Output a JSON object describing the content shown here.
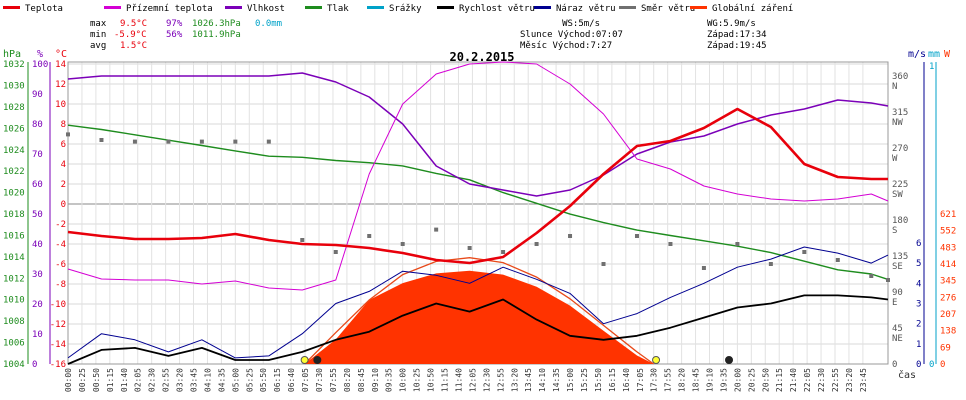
{
  "chart_data": {
    "type": "line",
    "title": "20.2.2015",
    "legend": [
      {
        "name": "Teplota",
        "color": "#e8000b"
      },
      {
        "name": "Přízemní teplota",
        "color": "#d400d4"
      },
      {
        "name": "Vlhkost",
        "color": "#7b00b8"
      },
      {
        "name": "Tlak",
        "color": "#1e8c1e"
      },
      {
        "name": "Srážky",
        "color": "#00a2c8"
      },
      {
        "name": "Rychlost větru",
        "color": "#000000"
      },
      {
        "name": "Náraz větru",
        "color": "#000090"
      },
      {
        "name": "Směr větru",
        "color": "#707070"
      },
      {
        "name": "Globální záření",
        "color": "#ff3300"
      }
    ],
    "stats": {
      "max": {
        "label": "max",
        "temp": "9.5°C",
        "hum": "97%",
        "press": "1026.3hPa",
        "rain": "0.0mm"
      },
      "min": {
        "label": "min",
        "temp": "-5.9°C",
        "hum": "56%",
        "press": "1011.9hPa"
      },
      "avg": {
        "label": "avg",
        "temp": "1.5°C"
      }
    },
    "info": {
      "ws": "WS:5m/s",
      "wg": "WG:5.9m/s",
      "sun": "Slunce Východ:07:07",
      "sun_set": "Západ:17:34",
      "moon": "Měsíc Východ:7:27",
      "moon_set": "Západ:19:45"
    },
    "units": {
      "hpa": "hPa",
      "pct": "%",
      "c": "°C",
      "ms": "m/s",
      "mm": "mm",
      "w": "W",
      "cas": "čas"
    },
    "axes": {
      "pressure_ticks": [
        "1032",
        "1030",
        "1028",
        "1026",
        "1024",
        "1022",
        "1020",
        "1018",
        "1016",
        "1014",
        "1012",
        "1010",
        "1008",
        "1006",
        "1004"
      ],
      "humidity_ticks": [
        "100",
        "90",
        "80",
        "70",
        "60",
        "50",
        "40",
        "30",
        "20",
        "10",
        "0"
      ],
      "temp_ticks": [
        "14",
        "12",
        "10",
        "8",
        "6",
        "4",
        "2",
        "0",
        "-2",
        "-4",
        "-6",
        "-8",
        "-10",
        "-12",
        "-14",
        "-16"
      ],
      "dir_ticks": [
        {
          "v": "360",
          "d": "N"
        },
        {
          "v": "315",
          "d": "NW"
        },
        {
          "v": "270",
          "d": "W"
        },
        {
          "v": "225",
          "d": "SW"
        },
        {
          "v": "180",
          "d": "S"
        },
        {
          "v": "135",
          "d": "SE"
        },
        {
          "v": "90",
          "d": "E"
        },
        {
          "v": "45",
          "d": "NE"
        },
        {
          "v": "0",
          "d": ""
        }
      ],
      "wind_ticks": [
        "6",
        "5",
        "4",
        "3",
        "2",
        "1",
        "0"
      ],
      "rain_ticks": [
        "1",
        "0"
      ],
      "rad_ticks": [
        "621",
        "552",
        "483",
        "414",
        "345",
        "276",
        "207",
        "138",
        "69",
        "0"
      ],
      "time_ticks": [
        "00:00",
        "00:25",
        "00:50",
        "01:15",
        "01:40",
        "02:05",
        "02:30",
        "02:55",
        "03:20",
        "03:45",
        "04:10",
        "04:35",
        "05:00",
        "05:25",
        "05:50",
        "06:15",
        "06:40",
        "07:05",
        "07:30",
        "07:55",
        "08:20",
        "08:45",
        "09:10",
        "09:35",
        "10:00",
        "10:25",
        "10:50",
        "11:15",
        "11:40",
        "12:05",
        "12:30",
        "12:55",
        "13:20",
        "13:45",
        "14:10",
        "14:35",
        "15:00",
        "15:25",
        "15:50",
        "16:15",
        "16:40",
        "17:05",
        "17:30",
        "17:55",
        "18:20",
        "18:45",
        "19:10",
        "19:35",
        "20:00",
        "20:25",
        "20:50",
        "21:15",
        "21:40",
        "22:05",
        "22:30",
        "22:55",
        "23:20",
        "23:45"
      ]
    },
    "series_points": {
      "temperature_C": [
        [
          0,
          -2.8
        ],
        [
          1,
          -3.2
        ],
        [
          2,
          -3.5
        ],
        [
          3,
          -3.5
        ],
        [
          4,
          -3.4
        ],
        [
          5,
          -3.0
        ],
        [
          6,
          -3.6
        ],
        [
          7,
          -4.0
        ],
        [
          8,
          -4.1
        ],
        [
          9,
          -4.4
        ],
        [
          10,
          -4.9
        ],
        [
          11,
          -5.6
        ],
        [
          12,
          -5.9
        ],
        [
          13,
          -5.3
        ],
        [
          14,
          -2.9
        ],
        [
          15,
          -0.2
        ],
        [
          16,
          3.0
        ],
        [
          17,
          5.8
        ],
        [
          18,
          6.3
        ],
        [
          19,
          7.6
        ],
        [
          20,
          9.5
        ],
        [
          21,
          7.7
        ],
        [
          22,
          4.0
        ],
        [
          23,
          2.7
        ],
        [
          24,
          2.5
        ],
        [
          24.5,
          2.5
        ]
      ],
      "ground_temp_C": [
        [
          0,
          -6.5
        ],
        [
          1,
          -7.5
        ],
        [
          2,
          -7.6
        ],
        [
          3,
          -7.6
        ],
        [
          4,
          -8.0
        ],
        [
          5,
          -7.7
        ],
        [
          6,
          -8.4
        ],
        [
          7,
          -8.6
        ],
        [
          8,
          -7.6
        ],
        [
          9,
          3.0
        ],
        [
          10,
          10.0
        ],
        [
          11,
          13.0
        ],
        [
          12,
          14.0
        ],
        [
          13,
          14.2
        ],
        [
          14,
          14.0
        ],
        [
          15,
          12.0
        ],
        [
          16,
          9.0
        ],
        [
          17,
          4.5
        ],
        [
          18,
          3.5
        ],
        [
          19,
          1.8
        ],
        [
          20,
          1.0
        ],
        [
          21,
          0.5
        ],
        [
          22,
          0.3
        ],
        [
          23,
          0.5
        ],
        [
          24,
          1.0
        ],
        [
          24.5,
          0.3
        ]
      ],
      "humidity_pct": [
        [
          0,
          95
        ],
        [
          1,
          96
        ],
        [
          2,
          96
        ],
        [
          3,
          96
        ],
        [
          4,
          96
        ],
        [
          5,
          96
        ],
        [
          6,
          96
        ],
        [
          7,
          97
        ],
        [
          8,
          94
        ],
        [
          9,
          89
        ],
        [
          10,
          80
        ],
        [
          11,
          66
        ],
        [
          12,
          60
        ],
        [
          13,
          58
        ],
        [
          14,
          56
        ],
        [
          15,
          58
        ],
        [
          16,
          63
        ],
        [
          17,
          70
        ],
        [
          18,
          74
        ],
        [
          19,
          76
        ],
        [
          20,
          80
        ],
        [
          21,
          83
        ],
        [
          22,
          85
        ],
        [
          23,
          88
        ],
        [
          24,
          87
        ],
        [
          24.5,
          86
        ]
      ],
      "pressure_hPa": [
        [
          0,
          1026.3
        ],
        [
          1,
          1025.9
        ],
        [
          2,
          1025.4
        ],
        [
          3,
          1024.9
        ],
        [
          4,
          1024.4
        ],
        [
          5,
          1023.9
        ],
        [
          6,
          1023.4
        ],
        [
          7,
          1023.3
        ],
        [
          8,
          1023.0
        ],
        [
          9,
          1022.8
        ],
        [
          10,
          1022.5
        ],
        [
          11,
          1021.8
        ],
        [
          12,
          1021.2
        ],
        [
          13,
          1020.0
        ],
        [
          14,
          1019.0
        ],
        [
          15,
          1018.0
        ],
        [
          16,
          1017.2
        ],
        [
          17,
          1016.5
        ],
        [
          18,
          1016.0
        ],
        [
          19,
          1015.5
        ],
        [
          20,
          1015.0
        ],
        [
          21,
          1014.4
        ],
        [
          22,
          1013.6
        ],
        [
          23,
          1012.8
        ],
        [
          24,
          1012.4
        ],
        [
          24.5,
          1011.9
        ]
      ],
      "wind_speed_ms": [
        [
          0,
          0.0
        ],
        [
          1,
          0.7
        ],
        [
          2,
          0.8
        ],
        [
          3,
          0.4
        ],
        [
          4,
          0.8
        ],
        [
          5,
          0.2
        ],
        [
          6,
          0.2
        ],
        [
          7,
          0.6
        ],
        [
          8,
          1.2
        ],
        [
          9,
          1.6
        ],
        [
          10,
          2.4
        ],
        [
          11,
          3.0
        ],
        [
          12,
          2.6
        ],
        [
          13,
          3.2
        ],
        [
          14,
          2.2
        ],
        [
          15,
          1.4
        ],
        [
          16,
          1.2
        ],
        [
          17,
          1.4
        ],
        [
          18,
          1.8
        ],
        [
          19,
          2.3
        ],
        [
          20,
          2.8
        ],
        [
          21,
          3.0
        ],
        [
          22,
          3.4
        ],
        [
          23,
          3.4
        ],
        [
          24,
          3.3
        ],
        [
          24.5,
          3.2
        ]
      ],
      "wind_gust_ms": [
        [
          0,
          0.3
        ],
        [
          1,
          1.5
        ],
        [
          2,
          1.2
        ],
        [
          3,
          0.6
        ],
        [
          4,
          1.2
        ],
        [
          5,
          0.3
        ],
        [
          6,
          0.4
        ],
        [
          7,
          1.5
        ],
        [
          8,
          3.0
        ],
        [
          9,
          3.6
        ],
        [
          10,
          4.6
        ],
        [
          11,
          4.4
        ],
        [
          12,
          4.0
        ],
        [
          13,
          4.8
        ],
        [
          14,
          4.2
        ],
        [
          15,
          3.5
        ],
        [
          16,
          2.0
        ],
        [
          17,
          2.5
        ],
        [
          18,
          3.3
        ],
        [
          19,
          4.0
        ],
        [
          20,
          4.8
        ],
        [
          21,
          5.2
        ],
        [
          22,
          5.8
        ],
        [
          23,
          5.5
        ],
        [
          24,
          5.0
        ],
        [
          24.5,
          5.4
        ]
      ],
      "radiation_W": [
        [
          7.07,
          0
        ],
        [
          8,
          102
        ],
        [
          9,
          265
        ],
        [
          10,
          335
        ],
        [
          11,
          375
        ],
        [
          12,
          386
        ],
        [
          13,
          370
        ],
        [
          14,
          320
        ],
        [
          15,
          242
        ],
        [
          16,
          138
        ],
        [
          17,
          35
        ],
        [
          17.5,
          0
        ]
      ],
      "clear_sky_W": [
        [
          7.07,
          0
        ],
        [
          8,
          130
        ],
        [
          9,
          265
        ],
        [
          10,
          370
        ],
        [
          11,
          425
        ],
        [
          12,
          440
        ],
        [
          13,
          420
        ],
        [
          14,
          360
        ],
        [
          15,
          270
        ],
        [
          16,
          160
        ],
        [
          17,
          50
        ],
        [
          17.5,
          0
        ]
      ],
      "wind_dir_deg": [
        [
          0,
          287
        ],
        [
          1,
          280
        ],
        [
          2,
          278
        ],
        [
          3,
          278
        ],
        [
          4,
          278
        ],
        [
          5,
          278
        ],
        [
          6,
          278
        ],
        [
          7,
          155
        ],
        [
          8,
          140
        ],
        [
          9,
          160
        ],
        [
          10,
          150
        ],
        [
          11,
          168
        ],
        [
          12,
          145
        ],
        [
          13,
          140
        ],
        [
          14,
          150
        ],
        [
          15,
          160
        ],
        [
          16,
          125
        ],
        [
          17,
          160
        ],
        [
          18,
          150
        ],
        [
          19,
          120
        ],
        [
          20,
          150
        ],
        [
          21,
          125
        ],
        [
          22,
          140
        ],
        [
          23,
          130
        ],
        [
          24,
          110
        ],
        [
          24.5,
          105
        ]
      ]
    }
  }
}
